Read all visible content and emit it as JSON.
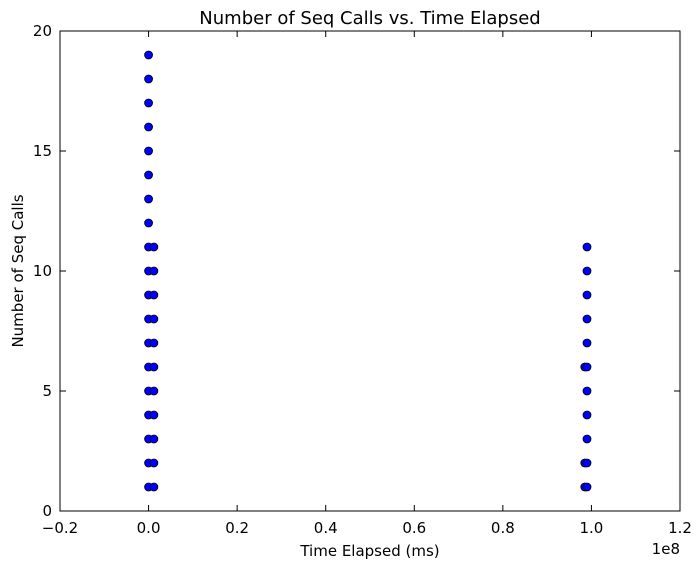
{
  "chart_data": {
    "type": "scatter",
    "title": "Number of Seq Calls vs. Time Elapsed",
    "xlabel": "Time Elapsed (ms)",
    "ylabel": "Number of Seq Calls",
    "x_offset_label": "1e8",
    "xlim": [
      -0.2,
      1.2
    ],
    "ylim": [
      0,
      20
    ],
    "xticks": [
      "−0.2",
      "0.0",
      "0.2",
      "0.4",
      "0.6",
      "0.8",
      "1.0",
      "1.2"
    ],
    "xtick_values": [
      -0.2,
      0.0,
      0.2,
      0.4,
      0.6,
      0.8,
      1.0,
      1.2
    ],
    "yticks": [
      "0",
      "5",
      "10",
      "15",
      "20"
    ],
    "ytick_values": [
      0,
      5,
      10,
      15,
      20
    ],
    "grid": false,
    "marker_color": "#0000ff",
    "points": [
      {
        "x": 0.0,
        "y": 1
      },
      {
        "x": 0.0,
        "y": 2
      },
      {
        "x": 0.0,
        "y": 3
      },
      {
        "x": 0.0,
        "y": 4
      },
      {
        "x": 0.0,
        "y": 5
      },
      {
        "x": 0.0,
        "y": 6
      },
      {
        "x": 0.0,
        "y": 7
      },
      {
        "x": 0.0,
        "y": 8
      },
      {
        "x": 0.0,
        "y": 9
      },
      {
        "x": 0.0,
        "y": 10
      },
      {
        "x": 0.0,
        "y": 11
      },
      {
        "x": 0.0,
        "y": 12
      },
      {
        "x": 0.0,
        "y": 13
      },
      {
        "x": 0.0,
        "y": 14
      },
      {
        "x": 0.0,
        "y": 15
      },
      {
        "x": 0.0,
        "y": 16
      },
      {
        "x": 0.0,
        "y": 17
      },
      {
        "x": 0.0,
        "y": 18
      },
      {
        "x": 0.0,
        "y": 19
      },
      {
        "x": 0.012,
        "y": 1
      },
      {
        "x": 0.012,
        "y": 2
      },
      {
        "x": 0.012,
        "y": 3
      },
      {
        "x": 0.012,
        "y": 4
      },
      {
        "x": 0.012,
        "y": 5
      },
      {
        "x": 0.012,
        "y": 6
      },
      {
        "x": 0.012,
        "y": 7
      },
      {
        "x": 0.012,
        "y": 8
      },
      {
        "x": 0.012,
        "y": 9
      },
      {
        "x": 0.012,
        "y": 10
      },
      {
        "x": 0.012,
        "y": 11
      },
      {
        "x": 0.985,
        "y": 1
      },
      {
        "x": 0.985,
        "y": 2
      },
      {
        "x": 0.985,
        "y": 6
      },
      {
        "x": 0.99,
        "y": 1
      },
      {
        "x": 0.99,
        "y": 2
      },
      {
        "x": 0.99,
        "y": 3
      },
      {
        "x": 0.99,
        "y": 4
      },
      {
        "x": 0.99,
        "y": 5
      },
      {
        "x": 0.99,
        "y": 6
      },
      {
        "x": 0.99,
        "y": 7
      },
      {
        "x": 0.99,
        "y": 8
      },
      {
        "x": 0.99,
        "y": 9
      },
      {
        "x": 0.99,
        "y": 10
      },
      {
        "x": 0.99,
        "y": 11
      }
    ]
  }
}
